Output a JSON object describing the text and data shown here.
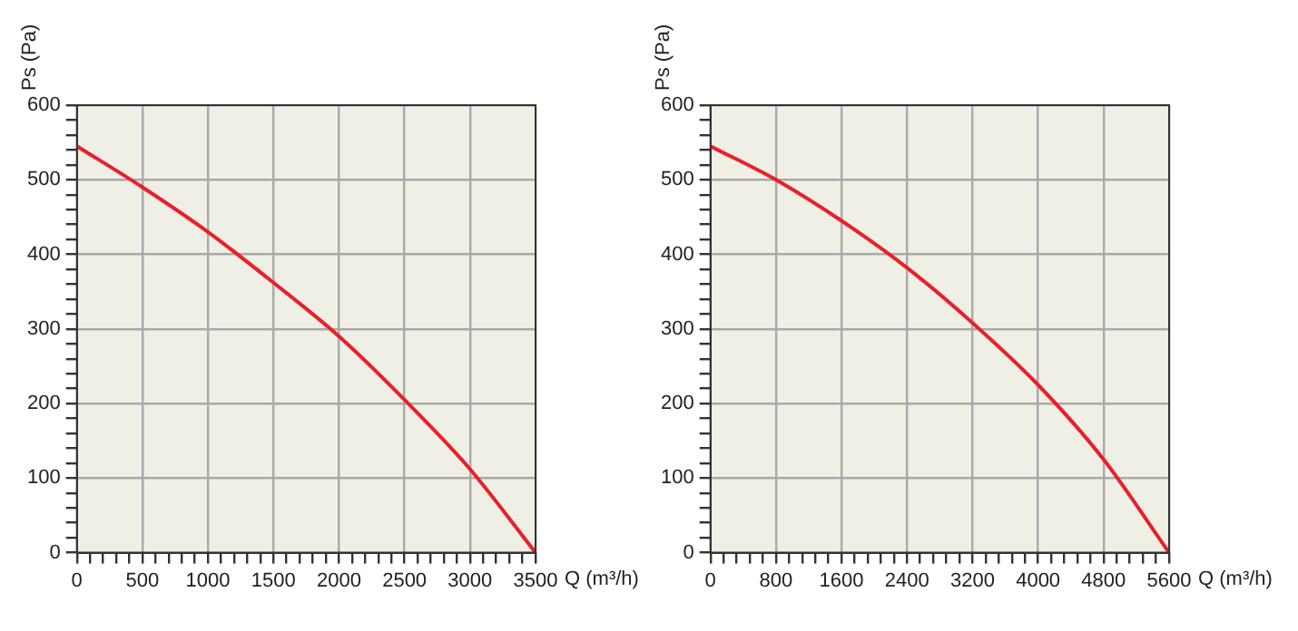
{
  "chart_data": [
    {
      "type": "line",
      "xlabel": "Q (m³/h)",
      "ylabel": "Ps (Pa)",
      "x": [
        0,
        500,
        1000,
        1500,
        2000,
        2500,
        3000,
        3500
      ],
      "series": [
        {
          "color": "#e8202a",
          "values": [
            545,
            490,
            430,
            362,
            290,
            205,
            112,
            0
          ]
        }
      ],
      "xlim": [
        0,
        3500
      ],
      "ylim": [
        0,
        600
      ],
      "xticks": [
        0,
        {
          "value": 100,
          "label": null
        },
        {
          "value": 200,
          "label": null
        },
        {
          "value": 300,
          "label": null
        },
        {
          "value": 400,
          "label": null
        },
        500,
        {
          "value": 600,
          "label": null
        },
        {
          "value": 700,
          "label": null
        },
        {
          "value": 800,
          "label": null
        },
        {
          "value": 900,
          "label": null
        },
        1000,
        {
          "value": 1100,
          "label": null
        },
        {
          "value": 1200,
          "label": null
        },
        {
          "value": 1300,
          "label": null
        },
        {
          "value": 1400,
          "label": null
        },
        1500,
        {
          "value": 1600,
          "label": null
        },
        {
          "value": 1700,
          "label": null
        },
        {
          "value": 1800,
          "label": null
        },
        {
          "value": 1900,
          "label": null
        },
        2000,
        {
          "value": 2100,
          "label": null
        },
        {
          "value": 2200,
          "label": null
        },
        {
          "value": 2300,
          "label": null
        },
        {
          "value": 2400,
          "label": null
        },
        2500,
        {
          "value": 2600,
          "label": null
        },
        {
          "value": 2700,
          "label": null
        },
        {
          "value": 2800,
          "label": null
        },
        {
          "value": 2900,
          "label": null
        },
        3000,
        {
          "value": 3100,
          "label": null
        },
        {
          "value": 3200,
          "label": null
        },
        {
          "value": 3300,
          "label": null
        },
        {
          "value": 3400,
          "label": null
        },
        3500
      ],
      "yticks": [
        0,
        {
          "value": 20,
          "label": null
        },
        {
          "value": 40,
          "label": null
        },
        {
          "value": 60,
          "label": null
        },
        {
          "value": 80,
          "label": null
        },
        100,
        {
          "value": 120,
          "label": null
        },
        {
          "value": 140,
          "label": null
        },
        {
          "value": 160,
          "label": null
        },
        {
          "value": 180,
          "label": null
        },
        200,
        {
          "value": 220,
          "label": null
        },
        {
          "value": 240,
          "label": null
        },
        {
          "value": 260,
          "label": null
        },
        {
          "value": 280,
          "label": null
        },
        300,
        {
          "value": 320,
          "label": null
        },
        {
          "value": 340,
          "label": null
        },
        {
          "value": 360,
          "label": null
        },
        {
          "value": 380,
          "label": null
        },
        400,
        {
          "value": 420,
          "label": null
        },
        {
          "value": 440,
          "label": null
        },
        {
          "value": 460,
          "label": null
        },
        {
          "value": 480,
          "label": null
        },
        500,
        {
          "value": 520,
          "label": null
        },
        {
          "value": 540,
          "label": null
        },
        {
          "value": 560,
          "label": null
        },
        {
          "value": 580,
          "label": null
        },
        600
      ],
      "grid": true,
      "marker": "none",
      "line_style": "solid"
    },
    {
      "type": "line",
      "xlabel": "Q (m³/h)",
      "ylabel": "Ps (Pa)",
      "x": [
        0,
        800,
        1600,
        2400,
        3200,
        4000,
        4800,
        5600
      ],
      "series": [
        {
          "color": "#e8202a",
          "values": [
            545,
            500,
            445,
            382,
            308,
            225,
            125,
            0
          ]
        }
      ],
      "xlim": [
        0,
        5600
      ],
      "ylim": [
        0,
        600
      ],
      "xticks": [
        0,
        {
          "value": 160,
          "label": null
        },
        {
          "value": 320,
          "label": null
        },
        {
          "value": 480,
          "label": null
        },
        {
          "value": 640,
          "label": null
        },
        800,
        {
          "value": 960,
          "label": null
        },
        {
          "value": 1120,
          "label": null
        },
        {
          "value": 1280,
          "label": null
        },
        {
          "value": 1440,
          "label": null
        },
        1600,
        {
          "value": 1760,
          "label": null
        },
        {
          "value": 1920,
          "label": null
        },
        {
          "value": 2080,
          "label": null
        },
        {
          "value": 2240,
          "label": null
        },
        2400,
        {
          "value": 2560,
          "label": null
        },
        {
          "value": 2720,
          "label": null
        },
        {
          "value": 2880,
          "label": null
        },
        {
          "value": 3040,
          "label": null
        },
        3200,
        {
          "value": 3360,
          "label": null
        },
        {
          "value": 3520,
          "label": null
        },
        {
          "value": 3680,
          "label": null
        },
        {
          "value": 3840,
          "label": null
        },
        4000,
        {
          "value": 4160,
          "label": null
        },
        {
          "value": 4320,
          "label": null
        },
        {
          "value": 4480,
          "label": null
        },
        {
          "value": 4640,
          "label": null
        },
        4800,
        {
          "value": 4960,
          "label": null
        },
        {
          "value": 5120,
          "label": null
        },
        {
          "value": 5280,
          "label": null
        },
        {
          "value": 5440,
          "label": null
        },
        5600
      ],
      "yticks": [
        0,
        {
          "value": 20,
          "label": null
        },
        {
          "value": 40,
          "label": null
        },
        {
          "value": 60,
          "label": null
        },
        {
          "value": 80,
          "label": null
        },
        100,
        {
          "value": 120,
          "label": null
        },
        {
          "value": 140,
          "label": null
        },
        {
          "value": 160,
          "label": null
        },
        {
          "value": 180,
          "label": null
        },
        200,
        {
          "value": 220,
          "label": null
        },
        {
          "value": 240,
          "label": null
        },
        {
          "value": 260,
          "label": null
        },
        {
          "value": 280,
          "label": null
        },
        300,
        {
          "value": 320,
          "label": null
        },
        {
          "value": 340,
          "label": null
        },
        {
          "value": 360,
          "label": null
        },
        {
          "value": 380,
          "label": null
        },
        400,
        {
          "value": 420,
          "label": null
        },
        {
          "value": 440,
          "label": null
        },
        {
          "value": 460,
          "label": null
        },
        {
          "value": 480,
          "label": null
        },
        500,
        {
          "value": 520,
          "label": null
        },
        {
          "value": 540,
          "label": null
        },
        {
          "value": 560,
          "label": null
        },
        {
          "value": 580,
          "label": null
        },
        600
      ],
      "grid": true,
      "marker": "none",
      "line_style": "solid"
    }
  ]
}
